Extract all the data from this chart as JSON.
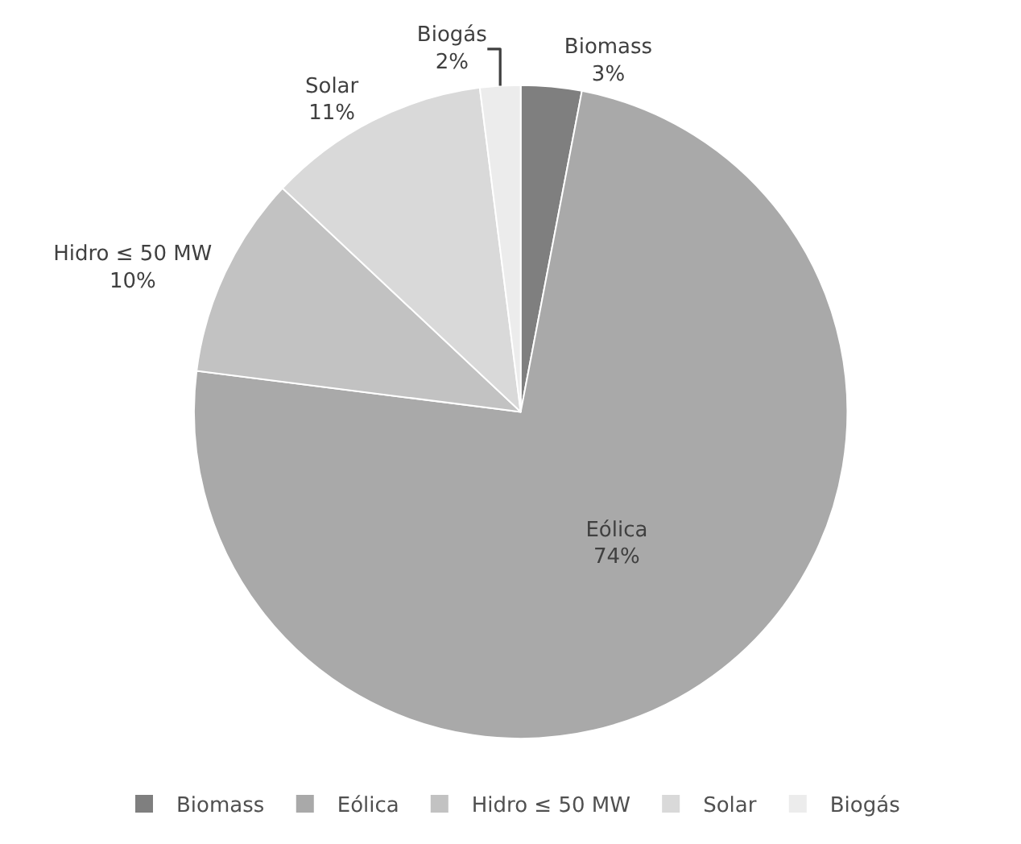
{
  "chart_data": {
    "type": "pie",
    "categories": [
      "Biomass",
      "Eólica",
      "Hidro ≤ 50 MW",
      "Solar",
      "Biogás"
    ],
    "values": [
      3,
      74,
      10,
      11,
      2
    ],
    "value_labels": [
      "3%",
      "74%",
      "10%",
      "11%",
      "2%"
    ],
    "colors": [
      "#7f7f7f",
      "#a9a9a9",
      "#c2c2c2",
      "#d9d9d9",
      "#ececec"
    ],
    "legend": "bottom"
  }
}
